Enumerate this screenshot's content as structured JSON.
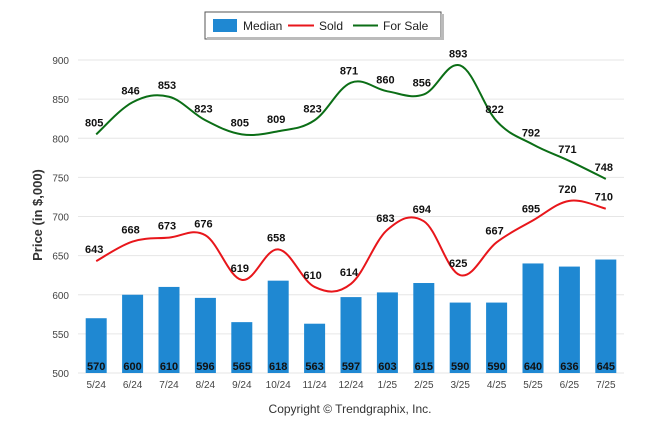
{
  "chart_data": {
    "type": "bar",
    "categories": [
      "5/24",
      "6/24",
      "7/24",
      "8/24",
      "9/24",
      "10/24",
      "11/24",
      "12/24",
      "1/25",
      "2/25",
      "3/25",
      "4/25",
      "5/25",
      "6/25",
      "7/25"
    ],
    "series": [
      {
        "name": "Median",
        "type": "bar",
        "color": "#1f88d2",
        "values": [
          570,
          600,
          610,
          596,
          565,
          618,
          563,
          597,
          603,
          615,
          590,
          590,
          640,
          636,
          645
        ]
      },
      {
        "name": "Sold",
        "type": "line",
        "color": "#e8161b",
        "values": [
          643,
          668,
          673,
          676,
          619,
          658,
          610,
          614,
          683,
          694,
          625,
          667,
          695,
          720,
          710
        ]
      },
      {
        "name": "For Sale",
        "type": "line",
        "color": "#0b6e16",
        "values": [
          805,
          846,
          853,
          823,
          805,
          809,
          823,
          871,
          860,
          856,
          893,
          822,
          792,
          771,
          748
        ]
      }
    ],
    "ylabel": "Price (in $,000)",
    "ylim": [
      500,
      900
    ],
    "yticks": [
      500,
      550,
      600,
      650,
      700,
      750,
      800,
      850,
      900
    ],
    "grid": true,
    "legend_position": "top-center"
  },
  "credit": "Copyright © Trendgraphix, Inc."
}
